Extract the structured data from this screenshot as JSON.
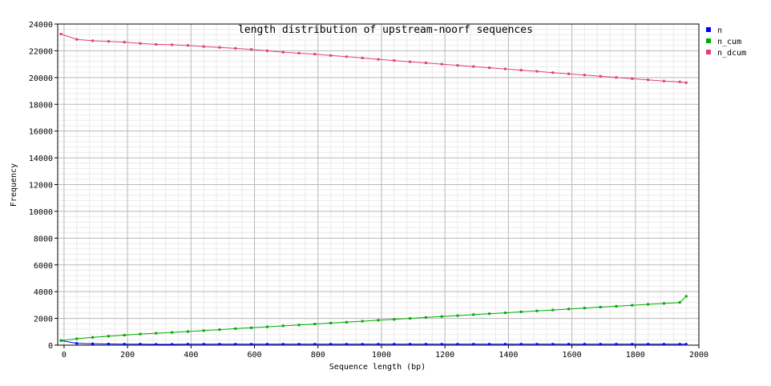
{
  "chart_data": {
    "type": "line",
    "title": "length distribution of upstream-noorf sequences",
    "xlabel": "Sequence length (bp)",
    "ylabel": "Frequency",
    "xlim": [
      -20,
      2000
    ],
    "ylim": [
      0,
      24000
    ],
    "x_ticks": [
      0,
      200,
      400,
      600,
      800,
      1000,
      1200,
      1400,
      1600,
      1800,
      2000
    ],
    "y_ticks": [
      0,
      2000,
      4000,
      6000,
      8000,
      10000,
      12000,
      14000,
      16000,
      18000,
      20000,
      22000,
      24000
    ],
    "grid": true,
    "legend_position": "top-right",
    "x": [
      -10,
      40,
      90,
      140,
      190,
      240,
      290,
      340,
      390,
      440,
      490,
      540,
      590,
      640,
      690,
      740,
      790,
      840,
      890,
      940,
      990,
      1040,
      1090,
      1140,
      1190,
      1240,
      1290,
      1340,
      1390,
      1440,
      1490,
      1540,
      1590,
      1640,
      1690,
      1740,
      1790,
      1840,
      1890,
      1940,
      1960
    ],
    "series": [
      {
        "name": "n",
        "color": "#0000ff",
        "values": [
          350,
          130,
          100,
          90,
          80,
          80,
          60,
          60,
          70,
          70,
          70,
          70,
          70,
          70,
          70,
          70,
          70,
          70,
          70,
          70,
          70,
          70,
          70,
          70,
          70,
          70,
          70,
          70,
          70,
          70,
          70,
          70,
          70,
          70,
          70,
          70,
          70,
          70,
          70,
          70,
          70
        ]
      },
      {
        "name": "n_cum",
        "color": "#00aa00",
        "values": [
          350,
          480,
          580,
          670,
          750,
          830,
          890,
          950,
          1020,
          1090,
          1160,
          1230,
          1300,
          1370,
          1440,
          1510,
          1580,
          1650,
          1720,
          1790,
          1860,
          1930,
          2000,
          2070,
          2140,
          2210,
          2280,
          2350,
          2420,
          2490,
          2560,
          2630,
          2700,
          2770,
          2840,
          2910,
          2980,
          3050,
          3120,
          3190,
          3650
        ]
      },
      {
        "name": "n_dcum",
        "color": "#e0407a",
        "values": [
          23250,
          22850,
          22750,
          22700,
          22650,
          22550,
          22480,
          22450,
          22400,
          22320,
          22250,
          22180,
          22100,
          22000,
          21900,
          21820,
          21750,
          21650,
          21560,
          21460,
          21360,
          21270,
          21180,
          21090,
          21000,
          20910,
          20820,
          20730,
          20640,
          20550,
          20460,
          20370,
          20280,
          20190,
          20100,
          20010,
          19920,
          19830,
          19740,
          19680,
          19620
        ]
      }
    ]
  }
}
